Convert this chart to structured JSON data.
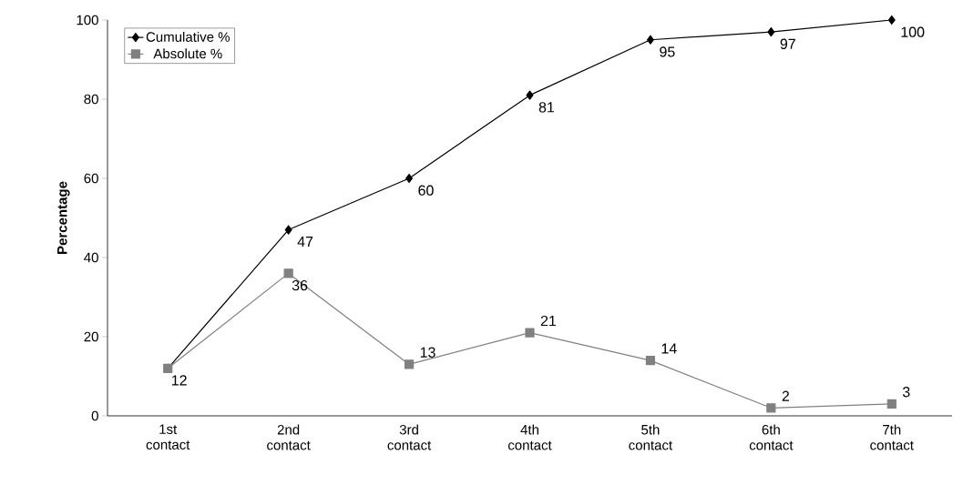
{
  "chart_data": {
    "type": "line",
    "ylabel": "Percentage",
    "categories": [
      "1st contact",
      "2nd contact",
      "3rd contact",
      "4th contact",
      "5th contact",
      "6th contact",
      "7th contact"
    ],
    "series": [
      {
        "name": "Cumulative %",
        "color": "#000000",
        "marker": "diamond",
        "values": [
          12,
          47,
          60,
          81,
          95,
          97,
          100
        ],
        "value_labels": [
          null,
          "47",
          "60",
          "81",
          "95",
          "97",
          "100"
        ]
      },
      {
        "name": "Absolute %",
        "color": "#808080",
        "marker": "square",
        "values": [
          12,
          36,
          13,
          21,
          14,
          2,
          3
        ],
        "value_labels": [
          "12",
          "36",
          "13",
          "21",
          "14",
          "2",
          "3"
        ]
      }
    ],
    "ylim": [
      0,
      100
    ],
    "yticks": [
      0,
      20,
      40,
      60,
      80,
      100
    ],
    "legend": "top left",
    "grid": false,
    "line_style": "solid"
  }
}
